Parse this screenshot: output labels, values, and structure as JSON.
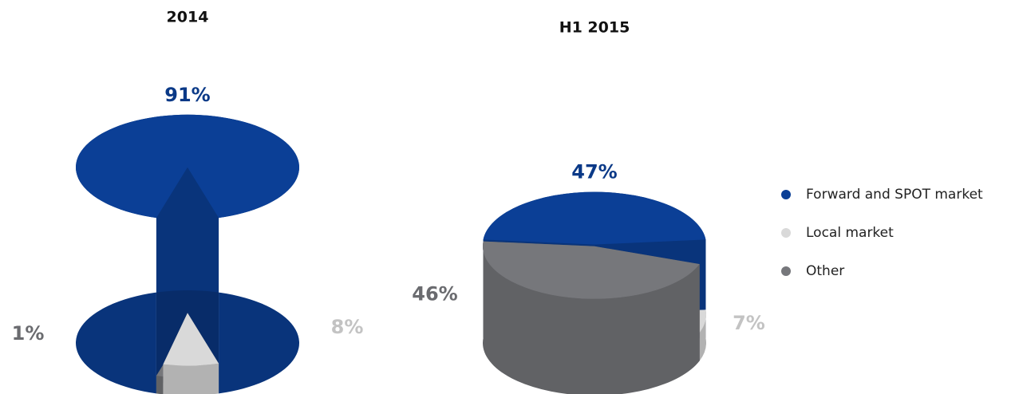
{
  "chart_data": [
    {
      "type": "pie",
      "title": "2014",
      "categories": [
        "Forward and SPOT market",
        "Local market",
        "Other"
      ],
      "values": [
        91,
        8,
        1
      ],
      "value_labels": [
        "91%",
        "8%",
        "1%"
      ],
      "colors": [
        "#0b3f96",
        "#d9d9d9",
        "#76777b"
      ]
    },
    {
      "type": "pie",
      "title": "H1 2015",
      "categories": [
        "Forward and SPOT market",
        "Local market",
        "Other"
      ],
      "values": [
        47,
        7,
        46
      ],
      "value_labels": [
        "47%",
        "7%",
        "46%"
      ],
      "colors": [
        "#0b3f96",
        "#d9d9d9",
        "#76777b"
      ]
    }
  ]
}
